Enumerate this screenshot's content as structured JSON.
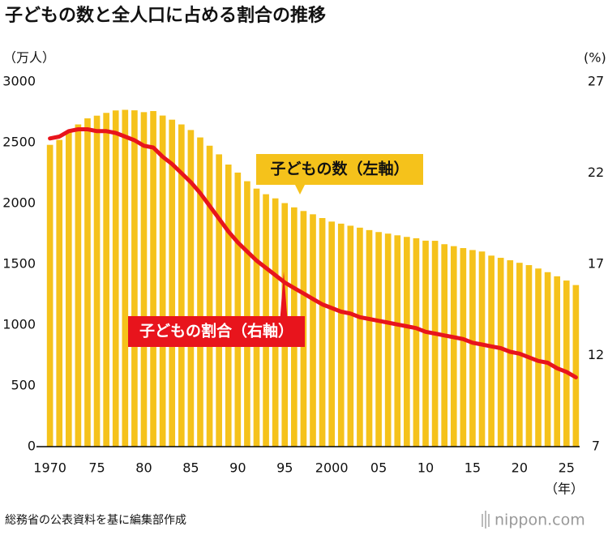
{
  "chart_data": {
    "type": "bar",
    "title": "子どもの数と全人口に占める割合の推移",
    "y_label": "（万人）",
    "y2_label": "(%)",
    "x_unit": "（年）",
    "source": "総務省の公表資料を基に編集部作成",
    "brand": "nippon.com",
    "x": [
      1970,
      1971,
      1972,
      1973,
      1974,
      1975,
      1976,
      1977,
      1978,
      1979,
      1980,
      1981,
      1982,
      1983,
      1984,
      1985,
      1986,
      1987,
      1988,
      1989,
      1990,
      1991,
      1992,
      1993,
      1994,
      1995,
      1996,
      1997,
      1998,
      1999,
      2000,
      2001,
      2002,
      2003,
      2004,
      2005,
      2006,
      2007,
      2008,
      2009,
      2010,
      2011,
      2012,
      2013,
      2014,
      2015,
      2016,
      2017,
      2018,
      2019,
      2020,
      2021,
      2022,
      2023,
      2024,
      2025,
      2026
    ],
    "xlim": [
      1969.6,
      2026.4
    ],
    "xticks": [
      1970,
      {
        "value": 1975,
        "label": "75"
      },
      {
        "value": 1980,
        "label": "80"
      },
      {
        "value": 1985,
        "label": "85"
      },
      {
        "value": 1990,
        "label": "90"
      },
      {
        "value": 1995,
        "label": "95"
      },
      2000,
      {
        "value": 2005,
        "label": "05"
      },
      {
        "value": 2010,
        "label": "10"
      },
      {
        "value": 2015,
        "label": "15"
      },
      {
        "value": 2020,
        "label": "20"
      },
      {
        "value": 2025,
        "label": "25"
      }
    ],
    "ylim": [
      0,
      3000
    ],
    "yticks": [
      0,
      500,
      1000,
      1500,
      2000,
      2500,
      3000
    ],
    "y2lim": [
      7,
      27
    ],
    "y2ticks": [
      7,
      12,
      17,
      22,
      27
    ],
    "series": [
      {
        "name": "子どもの数（左軸）",
        "type": "bar",
        "color": "#f5c21b",
        "values": [
          2482,
          2523,
          2590,
          2650,
          2700,
          2722,
          2745,
          2765,
          2770,
          2766,
          2751,
          2760,
          2723,
          2689,
          2650,
          2604,
          2543,
          2475,
          2404,
          2320,
          2254,
          2183,
          2122,
          2076,
          2042,
          2003,
          1968,
          1938,
          1911,
          1880,
          1851,
          1834,
          1817,
          1801,
          1781,
          1765,
          1752,
          1738,
          1725,
          1714,
          1694,
          1693,
          1665,
          1649,
          1633,
          1617,
          1605,
          1571,
          1553,
          1533,
          1512,
          1493,
          1465,
          1435,
          1401,
          1366,
          1329
        ]
      },
      {
        "name": "子どもの割合（右軸）",
        "type": "line",
        "axis": "y2",
        "color": "#e8141c",
        "values": [
          23.9,
          24.0,
          24.3,
          24.4,
          24.4,
          24.3,
          24.3,
          24.2,
          24.0,
          23.8,
          23.5,
          23.4,
          22.9,
          22.5,
          22.0,
          21.5,
          20.9,
          20.2,
          19.5,
          18.8,
          18.2,
          17.7,
          17.2,
          16.8,
          16.4,
          16.0,
          15.7,
          15.4,
          15.1,
          14.8,
          14.6,
          14.4,
          14.3,
          14.1,
          14.0,
          13.9,
          13.8,
          13.7,
          13.6,
          13.5,
          13.3,
          13.2,
          13.1,
          13.0,
          12.9,
          12.7,
          12.6,
          12.5,
          12.4,
          12.2,
          12.1,
          11.9,
          11.7,
          11.6,
          11.3,
          11.1,
          10.8
        ]
      }
    ]
  }
}
